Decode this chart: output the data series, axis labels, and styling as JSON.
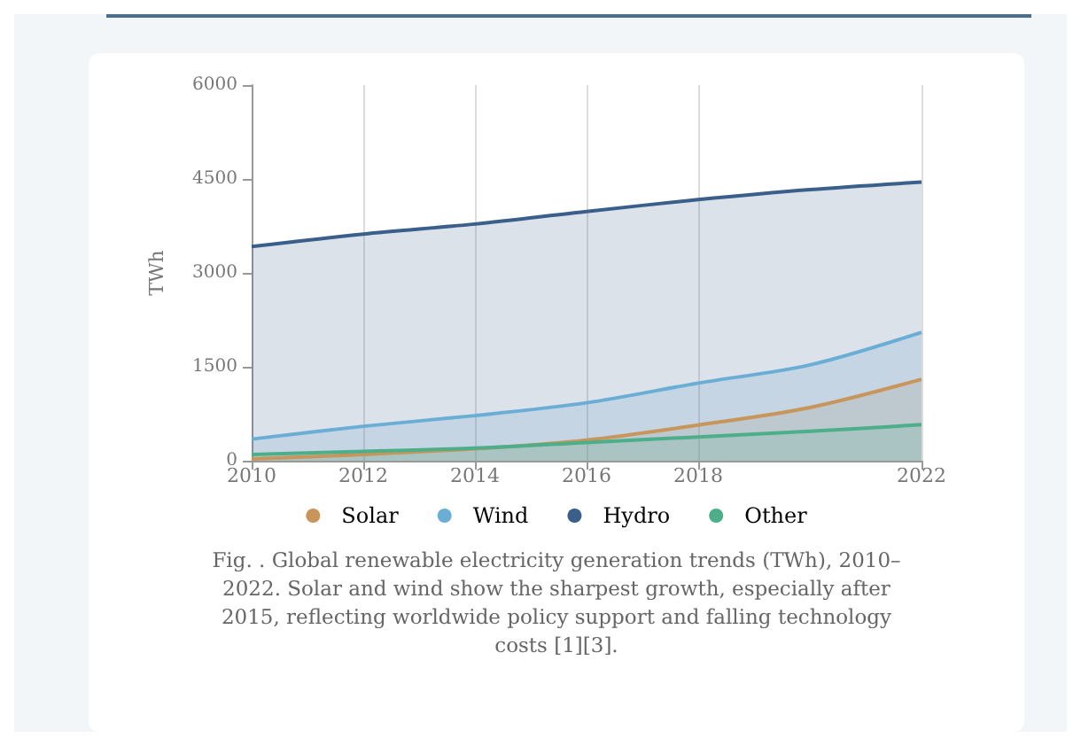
{
  "chart_data": {
    "type": "area",
    "ylabel": "TWh",
    "x": [
      2010,
      2012,
      2014,
      2016,
      2018,
      2020,
      2022
    ],
    "xlim": [
      2010,
      2022
    ],
    "xticks": [
      2010,
      2012,
      2014,
      2016,
      2018,
      2022
    ],
    "ylim": [
      0,
      6000
    ],
    "yticks": [
      0,
      1500,
      3000,
      4500,
      6000
    ],
    "series": [
      {
        "name": "Solar",
        "color": "#c8955a",
        "values": [
          30,
          100,
          190,
          330,
          570,
          850,
          1300
        ]
      },
      {
        "name": "Wind",
        "color": "#6aaed6",
        "values": [
          345,
          550,
          720,
          925,
          1240,
          1530,
          2050
        ]
      },
      {
        "name": "Hydro",
        "color": "#3a5f8a",
        "values": [
          3420,
          3620,
          3780,
          3980,
          4170,
          4330,
          4450
        ]
      },
      {
        "name": "Other",
        "color": "#4caf8a",
        "values": [
          100,
          150,
          200,
          290,
          380,
          470,
          575
        ]
      }
    ],
    "grid": "x",
    "legend": "bottom",
    "marker": "none",
    "annotations": [
      "Fig.  . Global renewable electricity generation trends (TWh), 2010–2022. Solar and wind show the sharpest growth, especially after 2015, reflecting worldwide policy support and falling technology costs [1][3]."
    ]
  }
}
